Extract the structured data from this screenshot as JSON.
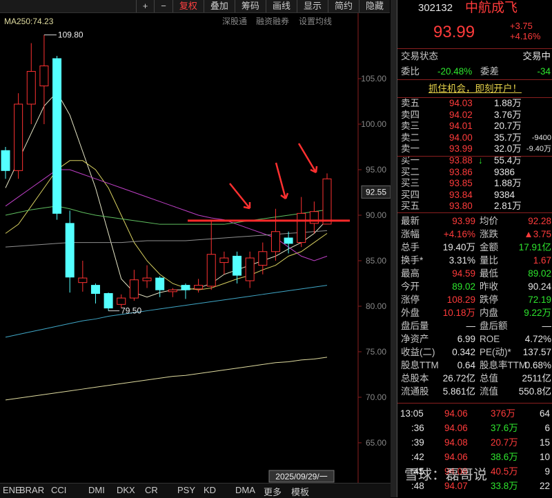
{
  "toolbar": {
    "buttons": [
      "+",
      "−",
      "复权",
      "叠加",
      "筹码",
      "画线",
      "显示",
      "简约",
      "隐藏"
    ]
  },
  "header": {
    "code": "302132",
    "name": "中航成飞",
    "price": "93.99",
    "change": "+3.75",
    "change_pct": "+4.16%"
  },
  "chart": {
    "ma_label": "MA250:74.23",
    "links": [
      "深股通",
      "融资融券",
      "设置均线"
    ],
    "ylim": [
      60.6,
      112.2
    ],
    "yticks": [
      {
        "value": 65,
        "label": "65.00"
      },
      {
        "value": 70,
        "label": "70.00"
      },
      {
        "value": 75,
        "label": "75.00"
      },
      {
        "value": 80,
        "label": "80.00"
      },
      {
        "value": 85,
        "label": "85.00"
      },
      {
        "value": 90,
        "label": "90.00"
      },
      {
        "value": 95,
        "label": "95.00"
      },
      {
        "value": 100,
        "label": "100.00"
      },
      {
        "value": 105,
        "label": "105.00"
      }
    ],
    "price_label": {
      "value": 92.55,
      "label": "92.55"
    },
    "high_note": {
      "value": 109.8,
      "label": "109.80"
    },
    "low_note": {
      "value": 79.5,
      "label": "79.50"
    },
    "ohlc": [
      [
        97.1,
        97.5,
        94,
        94.9
      ],
      [
        94.9,
        103.4,
        94,
        102.2
      ],
      [
        102.2,
        108.9,
        100,
        105.8
      ],
      [
        104.2,
        109.8,
        100,
        106.4
      ],
      [
        107.2,
        107.5,
        89.5,
        90.2
      ],
      [
        89.1,
        90.5,
        81.5,
        83.2
      ],
      [
        82.6,
        85,
        81.6,
        83.1
      ],
      [
        82.3,
        82.5,
        80.3,
        81.4
      ],
      [
        81.4,
        81.5,
        79.5,
        79.8
      ],
      [
        80.2,
        81.3,
        79.8,
        80.9
      ],
      [
        80.9,
        84,
        80.6,
        82.9
      ],
      [
        82.8,
        84.5,
        82,
        83.1
      ],
      [
        83.1,
        83.3,
        81,
        81.8
      ],
      [
        81.6,
        82,
        81,
        81.8
      ],
      [
        82.3,
        82.5,
        80.8,
        81.8
      ],
      [
        81.9,
        83,
        81.5,
        82.3
      ],
      [
        82.2,
        89.5,
        81.8,
        85.7
      ],
      [
        84.8,
        86,
        83.5,
        85.3
      ],
      [
        85.5,
        86,
        82.5,
        83.4
      ],
      [
        82.8,
        86,
        82,
        85.3
      ],
      [
        84.5,
        87,
        83.5,
        86
      ],
      [
        86,
        90.7,
        85,
        88.2
      ],
      [
        87.5,
        88.2,
        85.8,
        86.9
      ],
      [
        87,
        92,
        86.5,
        90.2
      ],
      [
        89.1,
        91.5,
        88,
        90.4
      ],
      [
        89.02,
        94.59,
        89.02,
        93.99
      ]
    ],
    "ma": [
      {
        "color": "#e8e8c8",
        "values": [
          93,
          96,
          99,
          102,
          103.5,
          101,
          97,
          93,
          88,
          83,
          81.5,
          81,
          81.5,
          81.8,
          81.8,
          82,
          82.5,
          83.5,
          84,
          84.5,
          85,
          85.5,
          86.3,
          87,
          88,
          89.5
        ]
      },
      {
        "color": "#d8d060",
        "values": [
          88,
          89,
          91,
          93,
          95,
          96,
          96,
          95,
          93,
          90,
          87,
          85,
          83.5,
          82.5,
          82,
          81.8,
          82,
          82.5,
          83,
          83.4,
          84,
          84.5,
          85.5,
          86,
          87,
          88
        ]
      },
      {
        "color": "#c040c8",
        "values": [
          91,
          92,
          93,
          94,
          95,
          95,
          94.5,
          94,
          93.5,
          93,
          92.5,
          92,
          91.5,
          91,
          90.5,
          90,
          89.7,
          89.5,
          89,
          88.5,
          88,
          87.5,
          86.5,
          85.5,
          85,
          85.5
        ]
      },
      {
        "color": "#60c060",
        "values": [
          90,
          90.3,
          90.6,
          90.8,
          91,
          90.7,
          90.3,
          90,
          89.8,
          89.6,
          89.4,
          89.2,
          89,
          89,
          89,
          89,
          89,
          89,
          89.2,
          89.4,
          89.6,
          89.8,
          90,
          90.2,
          90.4,
          90.6
        ]
      },
      {
        "color": "#909090",
        "values": [
          86.5,
          86.6,
          86.7,
          86.8,
          86.9,
          87,
          87,
          87,
          87,
          87,
          87.1,
          87.2,
          87.2,
          87.2,
          87.2,
          87.3,
          87.4,
          87.5,
          87.6,
          87.7,
          87.8,
          87.9,
          88,
          88.1,
          88.2,
          88.3
        ]
      },
      {
        "color": "#40a8c8",
        "values": [
          76.6,
          76.9,
          77.2,
          77.5,
          77.8,
          78.1,
          78.4,
          78.6,
          78.9,
          79.1,
          79.3,
          79.5,
          79.7,
          79.9,
          80.1,
          80.3,
          80.5,
          80.7,
          80.9,
          81.1,
          81.3,
          81.5,
          81.7,
          81.9,
          82.1,
          82.3
        ]
      },
      {
        "color": "#e0dca0",
        "values": [
          69.7,
          69.9,
          70.1,
          70.3,
          70.5,
          70.7,
          70.9,
          71.1,
          71.3,
          71.5,
          71.7,
          71.9,
          72.1,
          72.3,
          72.4,
          72.6,
          72.8,
          73,
          73.2,
          73.4,
          73.6,
          73.8,
          73.9,
          74.1,
          74.2,
          74.4
        ]
      }
    ],
    "resistance": 89.4,
    "date_label": "2025/09/29/一",
    "tabs": [
      "ENE",
      "BRAR",
      "CCI",
      "DMI",
      "DKX",
      "CR",
      "PSY",
      "KD",
      "DMA",
      "更多",
      "模板"
    ]
  },
  "panel": {
    "status_label": "交易状态",
    "status": "交易中",
    "wb_label": "委比",
    "wb": "-20.48%",
    "wc_label": "委差",
    "wc": "-34",
    "promo": "抓住机会，即刻开户！",
    "asks": [
      [
        "卖五",
        "94.03",
        "1.88万",
        ""
      ],
      [
        "卖四",
        "94.02",
        "3.76万",
        ""
      ],
      [
        "卖三",
        "94.01",
        "20.7万",
        ""
      ],
      [
        "卖二",
        "94.00",
        "35.7万",
        "-9400"
      ],
      [
        "卖一",
        "93.99",
        "32.0万",
        "-9.40万"
      ]
    ],
    "bids": [
      [
        "买一",
        "93.88",
        "55.4万",
        "↓"
      ],
      [
        "买二",
        "93.86",
        "9386",
        ""
      ],
      [
        "买三",
        "93.85",
        "1.88万",
        ""
      ],
      [
        "买四",
        "93.84",
        "9384",
        ""
      ],
      [
        "买五",
        "93.80",
        "2.81万",
        ""
      ]
    ],
    "stats": [
      [
        "最新",
        "93.99",
        "均价",
        "92.28"
      ],
      [
        "涨幅",
        "+4.16%",
        "涨跌",
        "▲3.75"
      ],
      [
        "总手",
        "19.40万",
        "金额",
        "17.91亿"
      ],
      [
        "换手*",
        "3.31%",
        "量比",
        "1.67"
      ],
      [
        "最高",
        "94.59",
        "最低",
        "89.02"
      ],
      [
        "今开",
        "89.02",
        "昨收",
        "90.24"
      ],
      [
        "涨停",
        "108.29",
        "跌停",
        "72.19"
      ],
      [
        "外盘",
        "10.18万",
        "内盘",
        "9.22万"
      ],
      [
        "盘后量",
        "—",
        "盘后额",
        "—"
      ],
      [
        "净资产",
        "6.99",
        "ROE",
        "4.72%"
      ],
      [
        "收益(二)",
        "0.342",
        "PE(动)*",
        "137.57"
      ],
      [
        "股息TTM",
        "0.64",
        "股息率TTM",
        "0.68%"
      ],
      [
        "总股本",
        "26.72亿",
        "总值",
        "2511亿"
      ],
      [
        "流通股",
        "5.861亿",
        "流值",
        "550.8亿"
      ]
    ],
    "ticks": [
      [
        "13:05",
        "94.06",
        "376万",
        "64"
      ],
      [
        ":36",
        "94.06",
        "37.6万",
        "6"
      ],
      [
        ":39",
        "94.08",
        "20.7万",
        "15"
      ],
      [
        ":42",
        "94.06",
        "38.6万",
        "10"
      ],
      [
        ":45",
        "94.08",
        "40.5万",
        "9"
      ],
      [
        ":48",
        "94.07",
        "33.8万",
        "22"
      ]
    ],
    "watermark": "雪球：磊哥说"
  }
}
